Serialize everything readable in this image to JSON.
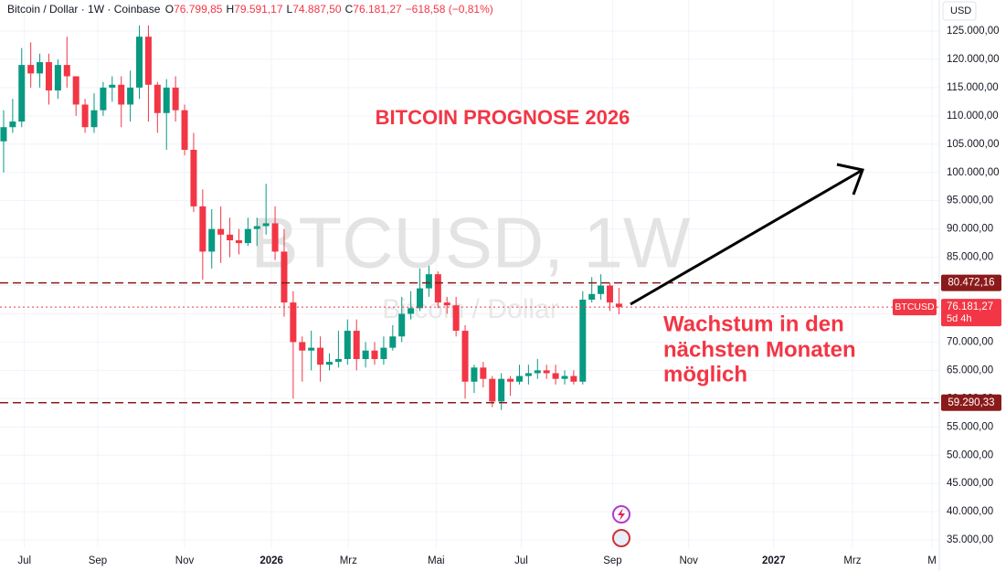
{
  "chart_data": {
    "type": "candlestick",
    "header": {
      "symbol": "Bitcoin / Dollar · 1W · Coinbase",
      "o_label": "O",
      "o": "76.799,85",
      "h_label": "H",
      "h": "79.591,17",
      "l_label": "L",
      "l": "74.887,50",
      "c_label": "C",
      "c": "76.181,27",
      "change": "−618,58 (−0,81%)"
    },
    "title": "BITCOIN PROGNOSE 2026",
    "watermark": "BTCUSD, 1W",
    "watermark_sub": "Bitcoin / Dollar",
    "annotation": [
      "Wachstum in den",
      "nächsten Monaten",
      "möglich"
    ],
    "currency": "USD",
    "up_color": "#089981",
    "down_color": "#f23645",
    "grid": true,
    "open": [
      105500,
      108000,
      109000,
      119000,
      117500,
      119500,
      114500,
      119000,
      117000,
      112000,
      108000,
      111000,
      115000,
      115500,
      112000,
      115000,
      124000,
      115500,
      110500,
      115000,
      111000,
      104000,
      94000,
      86000,
      90000,
      89000,
      88000,
      87500,
      90000,
      90500,
      91000,
      86000,
      77000,
      70000,
      68500,
      69000,
      66000,
      66500,
      67000,
      72000,
      67000,
      68500,
      67000,
      69000,
      71000,
      75000,
      76000,
      79500,
      82000,
      77000,
      76500,
      72000,
      63000,
      65500,
      63500,
      59500,
      63500,
      63000,
      64000,
      64500,
      65000,
      64500,
      63500,
      64000,
      63000,
      77500,
      78500,
      80000,
      76799.85
    ],
    "high": [
      111000,
      113000,
      122000,
      123000,
      121000,
      121000,
      120000,
      124000,
      117000,
      113000,
      114000,
      116000,
      117000,
      117000,
      118000,
      126000,
      126000,
      116000,
      116500,
      117000,
      112000,
      107000,
      97000,
      93500,
      94000,
      92000,
      90000,
      92000,
      92000,
      98000,
      94000,
      90000,
      79000,
      71000,
      72000,
      71000,
      68000,
      72000,
      74000,
      74000,
      70000,
      70000,
      71000,
      73000,
      78000,
      79000,
      83000,
      83500,
      82500,
      78000,
      78000,
      73000,
      66000,
      66500,
      64000,
      64500,
      64000,
      66000,
      66000,
      67000,
      66000,
      66000,
      65000,
      65000,
      79000,
      81500,
      82000,
      80500,
      79591.17
    ],
    "low": [
      100000,
      107000,
      108000,
      115000,
      115000,
      112000,
      113000,
      115000,
      110000,
      107000,
      107000,
      110000,
      112500,
      108000,
      109000,
      113000,
      109000,
      107000,
      104000,
      109000,
      103000,
      93000,
      81000,
      83000,
      84000,
      85000,
      85500,
      87000,
      87000,
      89000,
      84500,
      74500,
      60000,
      63000,
      65000,
      63000,
      65000,
      65500,
      66000,
      65000,
      65500,
      66000,
      66000,
      68500,
      70000,
      74000,
      75500,
      78000,
      76000,
      75000,
      71000,
      60000,
      61000,
      62000,
      58500,
      58000,
      60500,
      62500,
      62500,
      63500,
      63500,
      62500,
      62500,
      62500,
      62500,
      77000,
      77500,
      75500,
      74887.5
    ],
    "close": [
      108000,
      109000,
      119000,
      117500,
      119500,
      114500,
      119000,
      117000,
      112000,
      108000,
      111000,
      115000,
      115500,
      112000,
      115000,
      124000,
      115500,
      110500,
      115000,
      111000,
      104000,
      94000,
      86000,
      90000,
      89000,
      88000,
      87500,
      90000,
      90500,
      91000,
      86000,
      77000,
      70000,
      68500,
      69000,
      66000,
      66500,
      67000,
      72000,
      67000,
      68500,
      67000,
      69000,
      71000,
      75000,
      76000,
      79500,
      82000,
      77000,
      76500,
      72000,
      63000,
      65500,
      63500,
      59500,
      63500,
      63000,
      64000,
      64500,
      65000,
      64500,
      63500,
      64000,
      63000,
      77500,
      78500,
      80000,
      77000,
      76181.27
    ],
    "xlim": [
      -0.4,
      103.4
    ],
    "xticks": [
      {
        "value": 2.3,
        "label": "Jul"
      },
      {
        "value": 10.4,
        "label": "Sep"
      },
      {
        "value": 20,
        "label": "Nov"
      },
      {
        "value": 29.6,
        "label": "2026"
      },
      {
        "value": 38.1,
        "label": "Mrz"
      },
      {
        "value": 47.8,
        "label": "Mai"
      },
      {
        "value": 57.2,
        "label": "Jul"
      },
      {
        "value": 67.3,
        "label": "Sep"
      },
      {
        "value": 75.7,
        "label": "Nov"
      },
      {
        "value": 85.1,
        "label": "2027"
      },
      {
        "value": 93.8,
        "label": "Mrz"
      },
      {
        "value": 102.6,
        "label": "M"
      }
    ],
    "ylim": [
      33560,
      130490
    ],
    "yticks": [
      {
        "value": 35000,
        "label": "35.000,00"
      },
      {
        "value": 40000,
        "label": "40.000,00"
      },
      {
        "value": 45000,
        "label": "45.000,00"
      },
      {
        "value": 50000,
        "label": "50.000,00"
      },
      {
        "value": 55000,
        "label": "55.000,00"
      },
      {
        "value": 60000,
        "label": "60.000,00"
      },
      {
        "value": 65000,
        "label": "65.000,00"
      },
      {
        "value": 70000,
        "label": "70.000,00"
      },
      {
        "value": 75000,
        "label": "75.000,00"
      },
      {
        "value": 80000,
        "label": "80.000,00"
      },
      {
        "value": 85000,
        "label": "85.000,00"
      },
      {
        "value": 90000,
        "label": "90.000,00"
      },
      {
        "value": 95000,
        "label": "95.000,00"
      },
      {
        "value": 100000,
        "label": "100.000,00"
      },
      {
        "value": 105000,
        "label": "105.000,00"
      },
      {
        "value": 110000,
        "label": "110.000,00"
      },
      {
        "value": 115000,
        "label": "115.000,00"
      },
      {
        "value": 120000,
        "label": "120.000,00"
      },
      {
        "value": 125000,
        "label": "125.000,00"
      }
    ],
    "price_lines": [
      {
        "value": 80472.16,
        "label": "80.472,16",
        "color": "#8b1a1a"
      },
      {
        "value": 59290.33,
        "label": "59.290,33",
        "color": "#8b1a1a"
      }
    ],
    "last_price": {
      "value": 76181.27,
      "label": "76.181,27",
      "symbol": "BTCUSD",
      "countdown": "5d 4h",
      "color": "#f23645"
    }
  }
}
